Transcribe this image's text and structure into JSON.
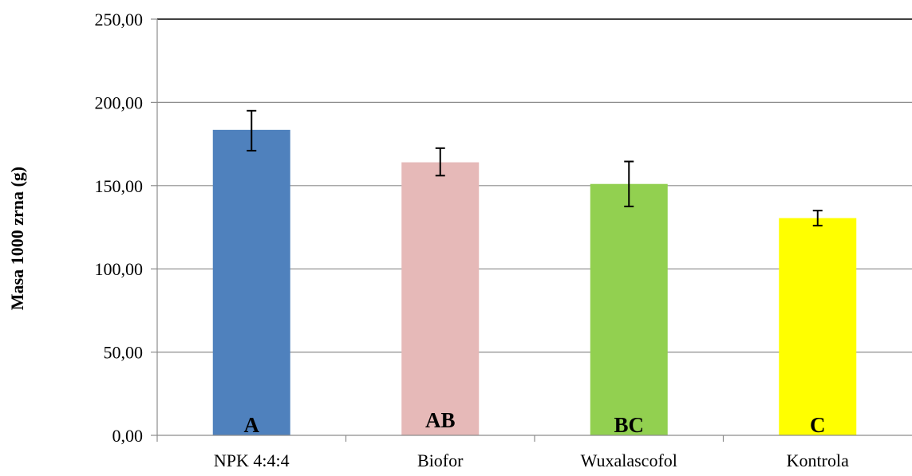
{
  "chart_data": {
    "type": "bar",
    "title": "",
    "xlabel": "",
    "ylabel": "Masa 1000 zrna (g)",
    "ylim": [
      0,
      250
    ],
    "yticks": [
      0,
      50,
      100,
      150,
      200,
      250
    ],
    "ytick_labels": [
      "0,00",
      "50,00",
      "100,00",
      "150,00",
      "200,00",
      "250,00"
    ],
    "grid": true,
    "legend": "none",
    "categories": [
      "NPK 4:4:4",
      "Biofor",
      "Wuxalascofol",
      "Kontrola"
    ],
    "values": [
      183.5,
      164.0,
      151.0,
      130.5
    ],
    "error_bars": [
      {
        "low": 171.0,
        "high": 195.0
      },
      {
        "low": 156.0,
        "high": 172.5
      },
      {
        "low": 137.5,
        "high": 164.5
      },
      {
        "low": 126.0,
        "high": 135.0
      }
    ],
    "bar_labels": [
      "A",
      "AB",
      "BC",
      "C"
    ],
    "colors": [
      "#4f81bd",
      "#e6b9b8",
      "#92d050",
      "#ffff00"
    ]
  }
}
